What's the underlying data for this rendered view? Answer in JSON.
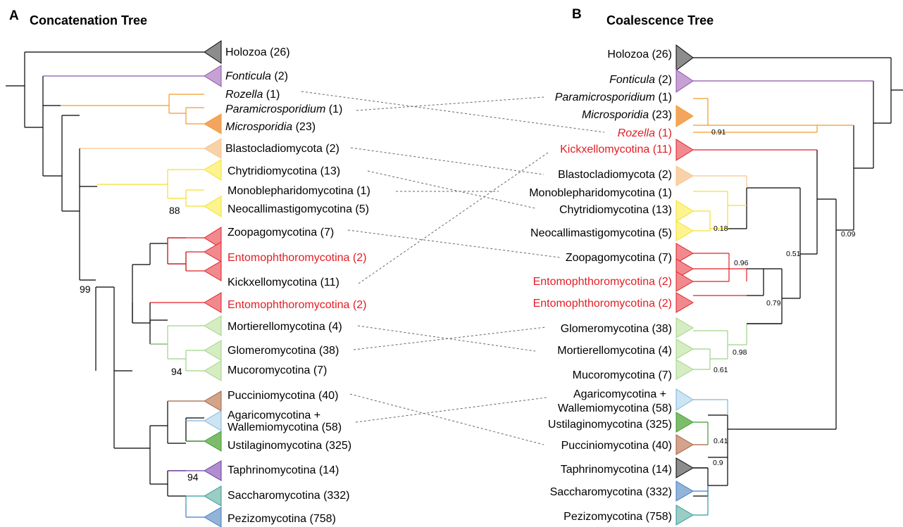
{
  "panels": [
    {
      "letter": "A",
      "title": "Concatenation Tree"
    },
    {
      "letter": "B",
      "title": "Coalescence Tree"
    }
  ],
  "colors": {
    "black": "#000000",
    "holozoa": "#8c8c8c",
    "fonticula": "#c6a1d3",
    "fonticula_branch": "#8a53a8",
    "microsporidia": "#f3a55f",
    "orange_branch": "#f39a2a",
    "blasto": "#f8d2a8",
    "blasto_branch": "#f9c38c",
    "yellow": "#fdf38f",
    "yellow_branch": "#f3e02a",
    "red_fill": "#f08a8e",
    "red": "#e31d24",
    "lightgreen": "#d6edc3",
    "lightgreen_branch": "#9ed384",
    "brown": "#d4a38b",
    "brown_branch": "#a0623f",
    "lightblue": "#cde4f3",
    "lightblue_branch": "#7fb5dc",
    "green": "#7dbd6a",
    "green_branch": "#3f9a34",
    "purple": "#b08fce",
    "purple_branch": "#6a3aa0",
    "teal": "#9bcdc5",
    "teal_branch": "#2f9b9a",
    "blue": "#94b3d8",
    "blue_branch": "#3d7fc2",
    "link": "#666666"
  },
  "tree_a": {
    "taxa": [
      {
        "id": "t1",
        "label": "Holozoa (26)",
        "italic": false,
        "red": false
      },
      {
        "id": "t2",
        "label": "Fonticula",
        "suffix": " (2)",
        "italic": true,
        "red": false
      },
      {
        "id": "t3",
        "label": "Rozella",
        "suffix": " (1)",
        "italic": true,
        "red": false
      },
      {
        "id": "t4",
        "label": "Paramicrosporidium",
        "suffix": " (1)",
        "italic": true,
        "red": false
      },
      {
        "id": "t5",
        "label": "Microsporidia",
        "suffix": " (23)",
        "italic": true,
        "red": false
      },
      {
        "id": "t6",
        "label": "Blastocladiomycota (2)",
        "italic": false,
        "red": false
      },
      {
        "id": "t7",
        "label": "Chytridiomycotina (13)",
        "italic": false,
        "red": false
      },
      {
        "id": "t8",
        "label": "Monoblepharidomycotina (1)",
        "italic": false,
        "red": false
      },
      {
        "id": "t9",
        "label": "Neocallimastigomycotina (5)",
        "italic": false,
        "red": false
      },
      {
        "id": "t10",
        "label": "Zoopagomycotina (7)",
        "italic": false,
        "red": false
      },
      {
        "id": "t11",
        "label": "Entomophthoromycotina (2)",
        "italic": false,
        "red": true
      },
      {
        "id": "t12",
        "label": "Kickxellomycotina (11)",
        "italic": false,
        "red": false
      },
      {
        "id": "t13",
        "label": "Entomophthoromycotina (2)",
        "italic": false,
        "red": true
      },
      {
        "id": "t14",
        "label": "Mortierellomycotina (4)",
        "italic": false,
        "red": false
      },
      {
        "id": "t15",
        "label": "Glomeromycotina (38)",
        "italic": false,
        "red": false
      },
      {
        "id": "t16",
        "label": "Mucoromycotina (7)",
        "italic": false,
        "red": false
      },
      {
        "id": "t17",
        "label": "Pucciniomycotina (40)",
        "italic": false,
        "red": false
      },
      {
        "id": "t18",
        "label": "Agaricomycotina +",
        "line2": "Wallemiomycotina (58)",
        "italic": false,
        "red": false
      },
      {
        "id": "t19",
        "label": "Ustilaginomycotina (325)",
        "italic": false,
        "red": false
      },
      {
        "id": "t20",
        "label": "Taphrinomycotina (14)",
        "italic": false,
        "red": false
      },
      {
        "id": "t21",
        "label": "Saccharomycotina (332)",
        "italic": false,
        "red": false
      },
      {
        "id": "t22",
        "label": "Pezizomycotina (758)",
        "italic": false,
        "red": false
      }
    ],
    "support": [
      "88",
      "99",
      "94",
      "94"
    ]
  },
  "tree_b": {
    "taxa": [
      {
        "id": "b1",
        "label": "Holozoa (26)",
        "italic": false,
        "red": false
      },
      {
        "id": "b2",
        "label": "Fonticula",
        "suffix": " (2)",
        "italic": true,
        "red": false
      },
      {
        "id": "b3",
        "label": "Paramicrosporidium",
        "suffix": " (1)",
        "italic": true,
        "red": false
      },
      {
        "id": "b4",
        "label": "Microsporidia",
        "suffix": " (23)",
        "italic": true,
        "red": false
      },
      {
        "id": "b5",
        "label": "Rozella",
        "suffix": " (1)",
        "italic": true,
        "red": true
      },
      {
        "id": "b6",
        "label": "Kickxellomycotina (11)",
        "italic": false,
        "red": true
      },
      {
        "id": "b7",
        "label": "Blastocladiomycota (2)",
        "italic": false,
        "red": false
      },
      {
        "id": "b8",
        "label": "Monoblepharidomycotina (1)",
        "italic": false,
        "red": false
      },
      {
        "id": "b9",
        "label": "Chytridiomycotina (13)",
        "italic": false,
        "red": false
      },
      {
        "id": "b10",
        "label": "Neocallimastigomycotina (5)",
        "italic": false,
        "red": false
      },
      {
        "id": "b11",
        "label": "Zoopagomycotina (7)",
        "italic": false,
        "red": false
      },
      {
        "id": "b12",
        "label": "Entomophthoromycotina (2)",
        "italic": false,
        "red": true
      },
      {
        "id": "b13",
        "label": "Entomophthoromycotina (2)",
        "italic": false,
        "red": true
      },
      {
        "id": "b14",
        "label": "Glomeromycotina (38)",
        "italic": false,
        "red": false
      },
      {
        "id": "b15",
        "label": "Mortierellomycotina (4)",
        "italic": false,
        "red": false
      },
      {
        "id": "b16",
        "label": "Mucoromycotina (7)",
        "italic": false,
        "red": false
      },
      {
        "id": "b17",
        "label": "Agaricomycotina +",
        "line2": "Wallemiomycotina (58)",
        "italic": false,
        "red": false
      },
      {
        "id": "b18",
        "label": "Ustilaginomycotina (325)",
        "italic": false,
        "red": false
      },
      {
        "id": "b19",
        "label": "Pucciniomycotina (40)",
        "italic": false,
        "red": false
      },
      {
        "id": "b20",
        "label": "Taphrinomycotina (14)",
        "italic": false,
        "red": false
      },
      {
        "id": "b21",
        "label": "Saccharomycotina (332)",
        "italic": false,
        "red": false
      },
      {
        "id": "b22",
        "label": "Pezizomycotina (758)",
        "italic": false,
        "red": false
      }
    ],
    "support": [
      "0.91",
      "0.18",
      "0.96",
      "0.79",
      "0.51",
      "0.09",
      "0.98",
      "0.61",
      "0.41",
      "0.9"
    ]
  }
}
